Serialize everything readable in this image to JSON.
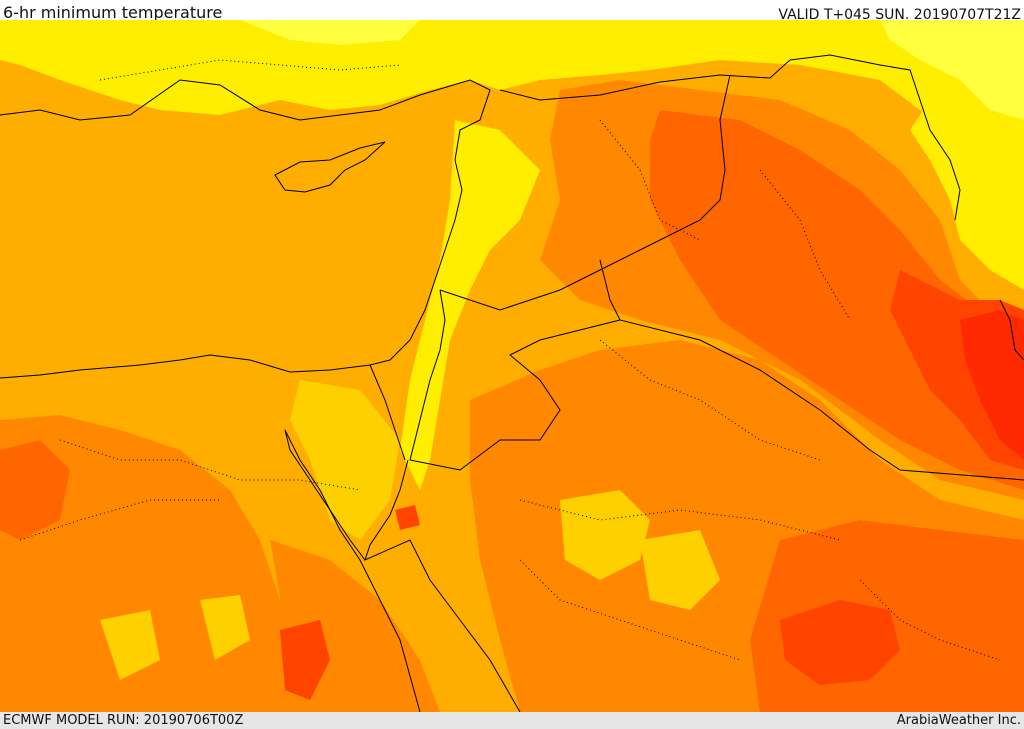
{
  "header": {
    "title": "6-hr minimum temperature",
    "valid": "VALID T+045 SUN. 20190707T21Z"
  },
  "footer": {
    "model_run": "ECMWF MODEL RUN: 20190706T00Z",
    "credit": "ArabiaWeather Inc."
  },
  "map": {
    "palette": {
      "yellow": "#ffee00",
      "light_yellow": "#ffff40",
      "yellow_orange": "#ffd000",
      "orange_light": "#ffae00",
      "orange": "#ff8800",
      "orange_dark": "#ff6600",
      "red_orange": "#ff4400",
      "red": "#ff2a00"
    }
  }
}
